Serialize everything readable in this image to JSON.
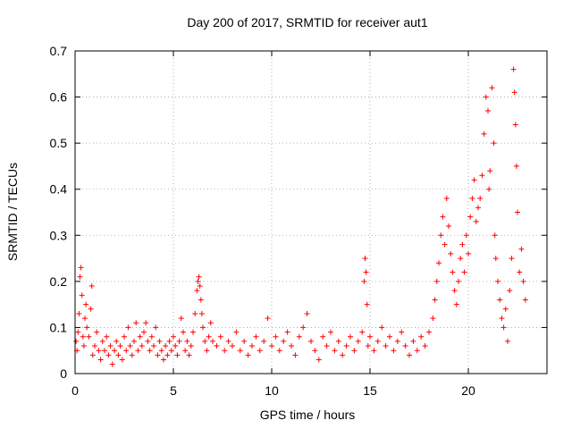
{
  "chart_data": {
    "type": "scatter",
    "title": "Day 200 of 2017, SRMTID for receiver aut1",
    "xlabel": "GPS time / hours",
    "ylabel": "SRMTID / TECUs",
    "xlim": [
      0,
      24
    ],
    "ylim": [
      0,
      0.7
    ],
    "xticks": [
      0,
      5,
      10,
      15,
      20
    ],
    "xtick_labels": [
      "0",
      "5",
      "10",
      "15",
      "20"
    ],
    "yticks": [
      0,
      0.1,
      0.2,
      0.3,
      0.4,
      0.5,
      0.6,
      0.7
    ],
    "ytick_labels": [
      "0",
      "0.1",
      "0.2",
      "0.3",
      "0.4",
      "0.5",
      "0.6",
      "0.7"
    ],
    "grid": true,
    "marker": "+",
    "color": "#ff0000",
    "series": [
      {
        "name": "SRMTID",
        "points": [
          [
            0.05,
            0.07
          ],
          [
            0.1,
            0.05
          ],
          [
            0.15,
            0.09
          ],
          [
            0.2,
            0.13
          ],
          [
            0.25,
            0.21
          ],
          [
            0.3,
            0.23
          ],
          [
            0.35,
            0.17
          ],
          [
            0.4,
            0.08
          ],
          [
            0.45,
            0.06
          ],
          [
            0.5,
            0.12
          ],
          [
            0.55,
            0.15
          ],
          [
            0.6,
            0.1
          ],
          [
            0.7,
            0.08
          ],
          [
            0.8,
            0.14
          ],
          [
            0.85,
            0.19
          ],
          [
            0.9,
            0.04
          ],
          [
            1.0,
            0.06
          ],
          [
            1.1,
            0.09
          ],
          [
            1.2,
            0.05
          ],
          [
            1.3,
            0.03
          ],
          [
            1.4,
            0.07
          ],
          [
            1.5,
            0.05
          ],
          [
            1.6,
            0.08
          ],
          [
            1.7,
            0.04
          ],
          [
            1.8,
            0.06
          ],
          [
            1.9,
            0.02
          ],
          [
            2.0,
            0.05
          ],
          [
            2.1,
            0.07
          ],
          [
            2.2,
            0.04
          ],
          [
            2.3,
            0.06
          ],
          [
            2.4,
            0.03
          ],
          [
            2.5,
            0.08
          ],
          [
            2.6,
            0.05
          ],
          [
            2.7,
            0.1
          ],
          [
            2.8,
            0.06
          ],
          [
            2.9,
            0.04
          ],
          [
            3.0,
            0.07
          ],
          [
            3.1,
            0.11
          ],
          [
            3.2,
            0.05
          ],
          [
            3.3,
            0.08
          ],
          [
            3.4,
            0.06
          ],
          [
            3.5,
            0.09
          ],
          [
            3.6,
            0.11
          ],
          [
            3.7,
            0.07
          ],
          [
            3.8,
            0.05
          ],
          [
            3.9,
            0.08
          ],
          [
            4.0,
            0.06
          ],
          [
            4.1,
            0.1
          ],
          [
            4.2,
            0.04
          ],
          [
            4.3,
            0.07
          ],
          [
            4.4,
            0.05
          ],
          [
            4.5,
            0.03
          ],
          [
            4.6,
            0.06
          ],
          [
            4.7,
            0.04
          ],
          [
            4.8,
            0.07
          ],
          [
            4.9,
            0.05
          ],
          [
            5.0,
            0.08
          ],
          [
            5.1,
            0.06
          ],
          [
            5.2,
            0.04
          ],
          [
            5.3,
            0.07
          ],
          [
            5.4,
            0.12
          ],
          [
            5.5,
            0.09
          ],
          [
            5.6,
            0.05
          ],
          [
            5.7,
            0.07
          ],
          [
            5.8,
            0.04
          ],
          [
            5.9,
            0.06
          ],
          [
            6.0,
            0.09
          ],
          [
            6.1,
            0.13
          ],
          [
            6.2,
            0.18
          ],
          [
            6.25,
            0.2
          ],
          [
            6.3,
            0.21
          ],
          [
            6.35,
            0.19
          ],
          [
            6.4,
            0.16
          ],
          [
            6.45,
            0.13
          ],
          [
            6.5,
            0.1
          ],
          [
            6.6,
            0.07
          ],
          [
            6.7,
            0.05
          ],
          [
            6.8,
            0.08
          ],
          [
            6.9,
            0.11
          ],
          [
            7.0,
            0.07
          ],
          [
            7.2,
            0.06
          ],
          [
            7.4,
            0.08
          ],
          [
            7.6,
            0.05
          ],
          [
            7.8,
            0.07
          ],
          [
            8.0,
            0.06
          ],
          [
            8.2,
            0.09
          ],
          [
            8.4,
            0.05
          ],
          [
            8.6,
            0.07
          ],
          [
            8.8,
            0.04
          ],
          [
            9.0,
            0.06
          ],
          [
            9.2,
            0.08
          ],
          [
            9.4,
            0.05
          ],
          [
            9.6,
            0.07
          ],
          [
            9.8,
            0.12
          ],
          [
            10.0,
            0.06
          ],
          [
            10.2,
            0.08
          ],
          [
            10.4,
            0.05
          ],
          [
            10.6,
            0.07
          ],
          [
            10.8,
            0.09
          ],
          [
            11.0,
            0.06
          ],
          [
            11.2,
            0.04
          ],
          [
            11.4,
            0.08
          ],
          [
            11.6,
            0.1
          ],
          [
            11.8,
            0.13
          ],
          [
            12.0,
            0.07
          ],
          [
            12.2,
            0.05
          ],
          [
            12.4,
            0.03
          ],
          [
            12.6,
            0.08
          ],
          [
            12.8,
            0.06
          ],
          [
            13.0,
            0.09
          ],
          [
            13.2,
            0.05
          ],
          [
            13.4,
            0.07
          ],
          [
            13.6,
            0.04
          ],
          [
            13.8,
            0.06
          ],
          [
            14.0,
            0.08
          ],
          [
            14.2,
            0.05
          ],
          [
            14.4,
            0.07
          ],
          [
            14.6,
            0.09
          ],
          [
            14.7,
            0.2
          ],
          [
            14.75,
            0.25
          ],
          [
            14.8,
            0.22
          ],
          [
            14.85,
            0.15
          ],
          [
            14.9,
            0.06
          ],
          [
            15.0,
            0.08
          ],
          [
            15.2,
            0.05
          ],
          [
            15.4,
            0.07
          ],
          [
            15.6,
            0.1
          ],
          [
            15.8,
            0.06
          ],
          [
            16.0,
            0.08
          ],
          [
            16.2,
            0.05
          ],
          [
            16.4,
            0.07
          ],
          [
            16.6,
            0.09
          ],
          [
            16.8,
            0.06
          ],
          [
            17.0,
            0.04
          ],
          [
            17.2,
            0.07
          ],
          [
            17.4,
            0.05
          ],
          [
            17.6,
            0.08
          ],
          [
            17.8,
            0.06
          ],
          [
            18.0,
            0.09
          ],
          [
            18.2,
            0.12
          ],
          [
            18.3,
            0.16
          ],
          [
            18.4,
            0.2
          ],
          [
            18.5,
            0.24
          ],
          [
            18.6,
            0.3
          ],
          [
            18.7,
            0.34
          ],
          [
            18.8,
            0.28
          ],
          [
            18.9,
            0.38
          ],
          [
            19.0,
            0.32
          ],
          [
            19.1,
            0.26
          ],
          [
            19.2,
            0.22
          ],
          [
            19.3,
            0.18
          ],
          [
            19.4,
            0.15
          ],
          [
            19.5,
            0.2
          ],
          [
            19.6,
            0.25
          ],
          [
            19.7,
            0.28
          ],
          [
            19.8,
            0.22
          ],
          [
            19.9,
            0.3
          ],
          [
            20.0,
            0.26
          ],
          [
            20.1,
            0.34
          ],
          [
            20.2,
            0.38
          ],
          [
            20.3,
            0.42
          ],
          [
            20.4,
            0.33
          ],
          [
            20.5,
            0.36
          ],
          [
            20.6,
            0.38
          ],
          [
            20.7,
            0.43
          ],
          [
            20.8,
            0.52
          ],
          [
            20.9,
            0.6
          ],
          [
            21.0,
            0.57
          ],
          [
            21.05,
            0.4
          ],
          [
            21.1,
            0.44
          ],
          [
            21.2,
            0.62
          ],
          [
            21.3,
            0.5
          ],
          [
            21.35,
            0.3
          ],
          [
            21.4,
            0.25
          ],
          [
            21.5,
            0.2
          ],
          [
            21.6,
            0.16
          ],
          [
            21.7,
            0.12
          ],
          [
            21.8,
            0.1
          ],
          [
            21.9,
            0.14
          ],
          [
            22.0,
            0.07
          ],
          [
            22.1,
            0.18
          ],
          [
            22.2,
            0.25
          ],
          [
            22.3,
            0.66
          ],
          [
            22.35,
            0.61
          ],
          [
            22.4,
            0.54
          ],
          [
            22.45,
            0.45
          ],
          [
            22.5,
            0.35
          ],
          [
            22.6,
            0.22
          ],
          [
            22.7,
            0.27
          ],
          [
            22.8,
            0.2
          ],
          [
            22.9,
            0.16
          ]
        ]
      }
    ]
  }
}
